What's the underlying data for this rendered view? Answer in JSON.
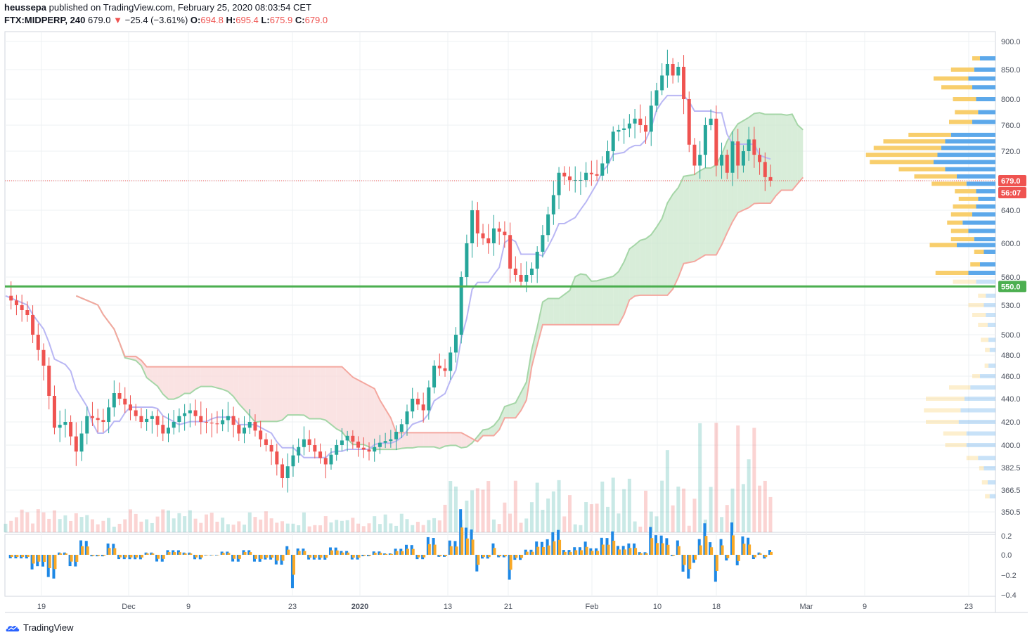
{
  "header": {
    "author": "heussepa",
    "published": "published on TradingView.com, February 25, 2020 08:03:54 CET",
    "symbol": "FTX:MIDPERP, 240",
    "last": "679.0",
    "change_arrow": "▼",
    "change": "−25.4 (−3.61%)",
    "o_label": "O:",
    "o_val": "694.8",
    "h_label": "H:",
    "h_val": "695.4",
    "l_label": "L:",
    "l_val": "675.9",
    "c_label": "C:",
    "c_val": "679.0"
  },
  "footer": {
    "brand": "TradingView"
  },
  "colors": {
    "bull": "#26a69a",
    "bear": "#ef5350",
    "hline": "#4caf50",
    "tenkan": "#b9b7f4",
    "kijun": "#f4a79f",
    "span_a": "#a5d6a7",
    "cloud_bull": "#c8e6c9",
    "cloud_bear": "#f8d7d7",
    "vp_up": "#4a9ee8",
    "vp_down": "#f7c95c"
  },
  "chart_data": {
    "type": "candlestick",
    "symbol": "FTX:MIDPERP",
    "interval": "240",
    "price_axis": {
      "ticks": [
        "900.0",
        "850.0",
        "800.0",
        "760.0",
        "720.0",
        "679.0",
        "640.0",
        "600.0",
        "560.0",
        "530.0",
        "500.0",
        "480.0",
        "460.0",
        "440.0",
        "420.0",
        "400.0",
        "382.5",
        "366.5",
        "350.5"
      ],
      "tick_values": [
        900,
        850,
        800,
        760,
        720,
        679,
        640,
        600,
        560,
        530,
        500,
        480,
        460,
        440,
        420,
        400,
        382.5,
        366.5,
        350.5
      ],
      "scale": "log"
    },
    "time_axis": {
      "labels": [
        "19",
        "Dec",
        "9",
        "23",
        "2020",
        "13",
        "21",
        "Feb",
        "10",
        "18",
        "Mar",
        "9",
        "23"
      ]
    },
    "last_price": {
      "value": 679.0,
      "label": "679.0",
      "countdown": "56:07"
    },
    "horizontal_line": {
      "value": 550.0,
      "label": "550.0"
    },
    "oscillator_axis": {
      "ticks": [
        "0.2",
        "0.0",
        "−0.2",
        "−0.4"
      ],
      "values": [
        0.2,
        0.0,
        -0.2,
        -0.4
      ]
    },
    "price_path": [
      [
        0,
        540
      ],
      [
        2,
        530
      ],
      [
        4,
        520
      ],
      [
        5,
        500
      ],
      [
        7,
        470
      ],
      [
        9,
        415
      ],
      [
        11,
        420
      ],
      [
        13,
        395
      ],
      [
        15,
        425
      ],
      [
        18,
        420
      ],
      [
        20,
        445
      ],
      [
        23,
        430
      ],
      [
        25,
        420
      ],
      [
        27,
        425
      ],
      [
        29,
        410
      ],
      [
        32,
        425
      ],
      [
        34,
        430
      ],
      [
        36,
        420
      ],
      [
        39,
        418
      ],
      [
        41,
        425
      ],
      [
        43,
        410
      ],
      [
        45,
        420
      ],
      [
        47,
        405
      ],
      [
        49,
        395
      ],
      [
        51,
        375
      ],
      [
        53,
        392
      ],
      [
        55,
        405
      ],
      [
        57,
        395
      ],
      [
        59,
        385
      ],
      [
        61,
        400
      ],
      [
        63,
        408
      ],
      [
        65,
        398
      ],
      [
        67,
        395
      ],
      [
        69,
        402
      ],
      [
        71,
        405
      ],
      [
        73,
        418
      ],
      [
        75,
        440
      ],
      [
        77,
        430
      ],
      [
        79,
        470
      ],
      [
        81,
        465
      ],
      [
        83,
        500
      ],
      [
        84,
        560
      ],
      [
        85,
        600
      ],
      [
        86,
        640
      ],
      [
        87,
        612
      ],
      [
        89,
        600
      ],
      [
        90,
        618
      ],
      [
        92,
        610
      ],
      [
        93,
        570
      ],
      [
        95,
        555
      ],
      [
        97,
        570
      ],
      [
        99,
        610
      ],
      [
        101,
        660
      ],
      [
        102,
        690
      ],
      [
        104,
        680
      ],
      [
        106,
        680
      ],
      [
        107,
        690
      ],
      [
        109,
        686
      ],
      [
        111,
        720
      ],
      [
        112,
        750
      ],
      [
        114,
        755
      ],
      [
        116,
        770
      ],
      [
        118,
        750
      ],
      [
        119,
        790
      ],
      [
        121,
        840
      ],
      [
        122,
        860
      ],
      [
        123,
        840
      ],
      [
        124,
        855
      ],
      [
        125,
        800
      ],
      [
        126,
        730
      ],
      [
        127,
        700
      ],
      [
        128,
        715
      ],
      [
        129,
        760
      ],
      [
        130,
        770
      ],
      [
        131,
        700
      ],
      [
        132,
        715
      ],
      [
        133,
        690
      ],
      [
        134,
        735
      ],
      [
        135,
        700
      ],
      [
        136,
        720
      ],
      [
        137,
        738
      ],
      [
        138,
        715
      ],
      [
        139,
        705
      ],
      [
        140,
        684
      ],
      [
        141,
        679
      ]
    ],
    "vp_levels": [
      {
        "price": 870,
        "up": 40,
        "down": 20
      },
      {
        "price": 850,
        "up": 55,
        "down": 60
      },
      {
        "price": 835,
        "up": 70,
        "down": 90
      },
      {
        "price": 820,
        "up": 60,
        "down": 80
      },
      {
        "price": 800,
        "up": 50,
        "down": 60
      },
      {
        "price": 780,
        "up": 45,
        "down": 60
      },
      {
        "price": 765,
        "up": 60,
        "down": 60
      },
      {
        "price": 745,
        "up": 115,
        "down": 110
      },
      {
        "price": 735,
        "up": 130,
        "down": 160
      },
      {
        "price": 725,
        "up": 140,
        "down": 175
      },
      {
        "price": 715,
        "up": 150,
        "down": 185
      },
      {
        "price": 705,
        "up": 160,
        "down": 165
      },
      {
        "price": 695,
        "up": 130,
        "down": 120
      },
      {
        "price": 685,
        "up": 100,
        "down": 110
      },
      {
        "price": 675,
        "up": 75,
        "down": 90
      },
      {
        "price": 665,
        "up": 50,
        "down": 55
      },
      {
        "price": 655,
        "up": 45,
        "down": 50
      },
      {
        "price": 645,
        "up": 50,
        "down": 60
      },
      {
        "price": 635,
        "up": 60,
        "down": 55
      },
      {
        "price": 625,
        "up": 85,
        "down": 40
      },
      {
        "price": 615,
        "up": 70,
        "down": 45
      },
      {
        "price": 605,
        "up": 55,
        "down": 60
      },
      {
        "price": 598,
        "up": 100,
        "down": 70
      },
      {
        "price": 590,
        "up": 30,
        "down": 25
      },
      {
        "price": 575,
        "up": 40,
        "down": 25
      },
      {
        "price": 565,
        "up": 70,
        "down": 85
      },
      {
        "price": 555,
        "up": 50,
        "down": 60
      },
      {
        "price": 540,
        "up": 25,
        "down": 20
      },
      {
        "price": 530,
        "up": 30,
        "down": 40
      },
      {
        "price": 520,
        "up": 25,
        "down": 35
      },
      {
        "price": 510,
        "up": 20,
        "down": 25
      },
      {
        "price": 495,
        "up": 18,
        "down": 20
      },
      {
        "price": 485,
        "up": 15,
        "down": 12
      },
      {
        "price": 470,
        "up": 18,
        "down": 10
      },
      {
        "price": 460,
        "up": 40,
        "down": 20
      },
      {
        "price": 450,
        "up": 65,
        "down": 55
      },
      {
        "price": 440,
        "up": 80,
        "down": 100
      },
      {
        "price": 430,
        "up": 90,
        "down": 95
      },
      {
        "price": 420,
        "up": 95,
        "down": 85
      },
      {
        "price": 410,
        "up": 75,
        "down": 60
      },
      {
        "price": 400,
        "up": 75,
        "down": 55
      },
      {
        "price": 390,
        "up": 45,
        "down": 30
      },
      {
        "price": 382,
        "up": 30,
        "down": 12
      },
      {
        "price": 372,
        "up": 20,
        "down": 15
      },
      {
        "price": 362,
        "up": 15,
        "down": 12
      }
    ]
  }
}
